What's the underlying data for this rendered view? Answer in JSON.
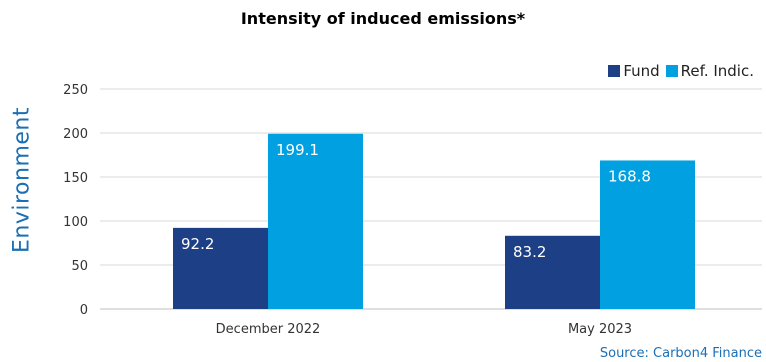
{
  "side_label": "Environment",
  "source": "Source: Carbon4 Finance",
  "colors": {
    "fund": "#1d3f85",
    "ref": "#00a0e1",
    "grid": "#d9d9d9",
    "axis": "#bfbfbf"
  },
  "chart_data": {
    "type": "bar",
    "title": "Intensity of induced emissions*",
    "categories": [
      "December 2022",
      "May 2023"
    ],
    "series": [
      {
        "name": "Fund",
        "values": [
          92.2,
          83.2
        ]
      },
      {
        "name": "Ref. Indic.",
        "values": [
          199.1,
          168.8
        ]
      }
    ],
    "ylim": [
      0,
      250
    ],
    "yticks": [
      0,
      50,
      100,
      150,
      200,
      250
    ],
    "grid": true,
    "legend": "top-right",
    "data_labels": [
      "92.2",
      "199.1",
      "83.2",
      "168.8"
    ]
  }
}
